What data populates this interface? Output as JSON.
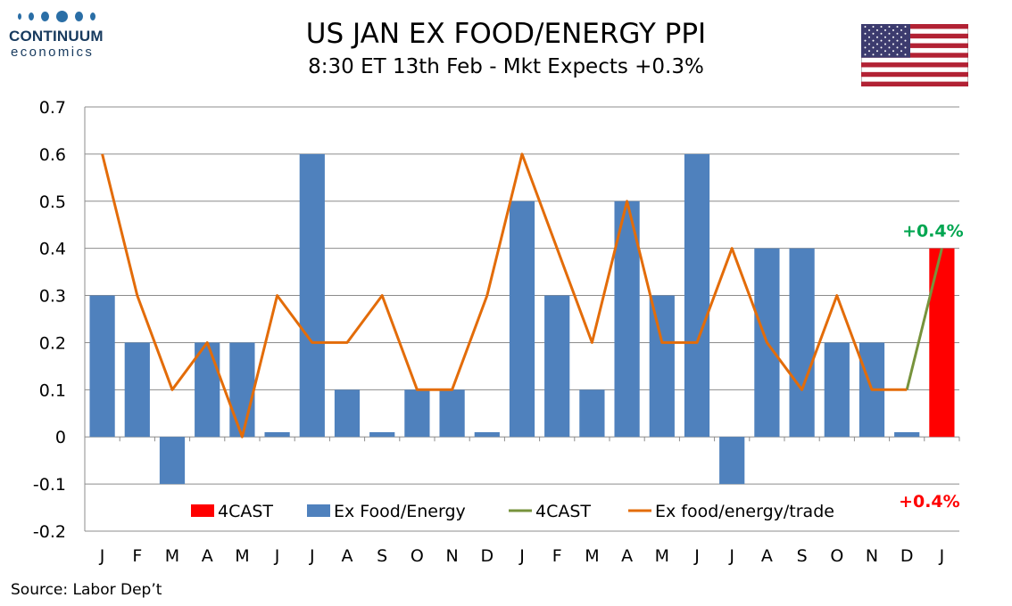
{
  "logo": {
    "name": "CONTINUUM",
    "sub": "economics"
  },
  "title": "US JAN EX FOOD/ENERGY PPI",
  "subtitle": "8:30 ET 13th Feb - Mkt Expects +0.3%",
  "source": "Source: Labor Dep’t",
  "flag": {
    "icon": "us-flag-icon"
  },
  "colors": {
    "bar": "#4f81bd",
    "forecast_bar": "#ff0000",
    "forecast_line": "#77933c",
    "trade_line": "#e36c09",
    "annot_up": "#00a651",
    "annot_down": "#ff0000"
  },
  "chart_data": {
    "type": "bar",
    "categories": [
      "J",
      "F",
      "M",
      "A",
      "M",
      "J",
      "J",
      "A",
      "S",
      "O",
      "N",
      "D",
      "J",
      "F",
      "M",
      "A",
      "M",
      "J",
      "J",
      "A",
      "S",
      "O",
      "N",
      "D",
      "J"
    ],
    "ylim": [
      -0.2,
      0.7
    ],
    "yticks": [
      "0.7",
      "0.6",
      "0.5",
      "0.4",
      "0.3",
      "0.2",
      "0.1",
      "0",
      "-0.1",
      "-0.2"
    ],
    "ytick_values": [
      0.7,
      0.6,
      0.5,
      0.4,
      0.3,
      0.2,
      0.1,
      0,
      -0.1,
      -0.2
    ],
    "grid": true,
    "legend_position": "bottom",
    "series": [
      {
        "name": "4CAST",
        "kind": "bar",
        "values": [
          null,
          null,
          null,
          null,
          null,
          null,
          null,
          null,
          null,
          null,
          null,
          null,
          null,
          null,
          null,
          null,
          null,
          null,
          null,
          null,
          null,
          null,
          null,
          null,
          0.4
        ]
      },
      {
        "name": "Ex Food/Energy",
        "kind": "bar",
        "values": [
          0.3,
          0.2,
          -0.1,
          0.2,
          0.2,
          0.01,
          0.6,
          0.1,
          0.01,
          0.1,
          0.1,
          0.01,
          0.5,
          0.3,
          0.1,
          0.5,
          0.3,
          0.6,
          -0.1,
          0.4,
          0.4,
          0.2,
          0.2,
          0.01,
          null
        ]
      },
      {
        "name": "4CAST",
        "kind": "line",
        "values": [
          null,
          null,
          null,
          null,
          null,
          null,
          null,
          null,
          null,
          null,
          null,
          null,
          null,
          null,
          null,
          null,
          null,
          null,
          null,
          null,
          null,
          null,
          null,
          0.1,
          0.4
        ]
      },
      {
        "name": "Ex food/energy/trade",
        "kind": "line",
        "values": [
          0.6,
          0.3,
          0.1,
          0.2,
          0.0,
          0.3,
          0.2,
          0.2,
          0.3,
          0.1,
          0.1,
          0.3,
          0.6,
          0.4,
          0.2,
          0.5,
          0.2,
          0.2,
          0.4,
          0.2,
          0.1,
          0.3,
          0.1,
          0.1,
          null
        ]
      }
    ],
    "annotations": [
      {
        "text": "+0.4%",
        "series": "4CAST line",
        "position": "above"
      },
      {
        "text": "+0.4%",
        "series": "4CAST bar",
        "position": "below"
      }
    ]
  }
}
